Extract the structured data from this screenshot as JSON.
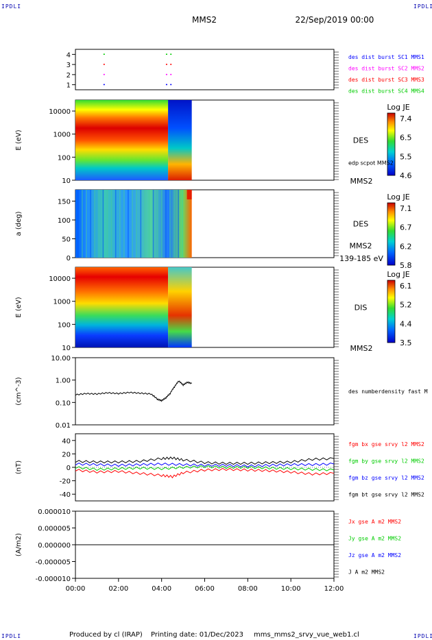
{
  "header": {
    "corner_left": "IPDLI",
    "corner_right": "IPDLI",
    "mission": "MMS2",
    "date": "22/Sep/2019 00:00"
  },
  "footer": {
    "produced_by": "Produced by cl (IRAP)",
    "printing_date": "Printing date: 01/Dec/2023",
    "product": "mms_mms2_srvy_vue_web1.cl",
    "corner_left": "IPDLI",
    "corner_right": "IPDLI"
  },
  "chart_data": {
    "type": "multi-panel time series",
    "time_axis": {
      "ticks": [
        "00:00",
        "02:00",
        "04:00",
        "06:00",
        "08:00",
        "10:00",
        "12:00"
      ],
      "range_hours": [
        0,
        12
      ]
    },
    "panels": [
      {
        "id": "burst",
        "type": "scatter",
        "ylim": [
          0.5,
          4.5
        ],
        "y_ticks": [
          "1",
          "2",
          "3",
          "4"
        ],
        "legend": [
          {
            "label": "des dist burst SC1 MMS1",
            "color": "#0000ff"
          },
          {
            "label": "des dist burst SC2 MMS2",
            "color": "#ff00ff"
          },
          {
            "label": "des dist burst SC3 MMS3",
            "color": "#ff0000"
          },
          {
            "label": "des dist burst SC4 MMS4",
            "color": "#00cc00"
          }
        ],
        "marks": [
          {
            "sc": 1,
            "t": [
              1.3,
              4.2,
              4.4
            ]
          },
          {
            "sc": 2,
            "t": [
              1.3,
              4.2,
              4.4
            ]
          },
          {
            "sc": 3,
            "t": [
              1.3,
              4.2,
              4.4
            ]
          },
          {
            "sc": 4,
            "t": [
              1.3,
              4.2,
              4.4
            ]
          }
        ]
      },
      {
        "id": "des-energy",
        "type": "heatmap",
        "ylabel": "E (eV)",
        "scale": "log",
        "ylim": [
          10,
          30000
        ],
        "y_ticks": [
          "10",
          "100",
          "1000",
          "10000"
        ],
        "right_label": "DES",
        "right_sub": "edp scpot MMS2",
        "bottom_right": "MMS2",
        "colorbar": {
          "title": "Log JE",
          "ticks": [
            "7.4",
            "6.5",
            "5.5",
            "4.6"
          ],
          "range": [
            4.6,
            7.4
          ]
        },
        "data_end_hours": 5.4
      },
      {
        "id": "des-pitch",
        "type": "heatmap",
        "ylabel": "a (deg)",
        "ylim": [
          0,
          180
        ],
        "y_ticks": [
          "0",
          "50",
          "100",
          "150"
        ],
        "right_label": "DES",
        "right_sub": "MMS2",
        "bottom_right": "139-185 eV",
        "colorbar": {
          "title": "Log JE",
          "ticks": [
            "7.1",
            "6.7",
            "6.2",
            "5.8"
          ],
          "range": [
            5.8,
            7.1
          ]
        },
        "data_end_hours": 5.4
      },
      {
        "id": "dis-energy",
        "type": "heatmap",
        "ylabel": "E (eV)",
        "scale": "log",
        "ylim": [
          10,
          30000
        ],
        "y_ticks": [
          "10",
          "100",
          "1000",
          "10000"
        ],
        "right_label": "DIS",
        "bottom_right": "MMS2",
        "colorbar": {
          "title": "Log JE",
          "ticks": [
            "6.1",
            "5.2",
            "4.4",
            "3.5"
          ],
          "range": [
            3.5,
            6.1
          ]
        },
        "data_end_hours": 5.4
      },
      {
        "id": "density",
        "type": "line",
        "ylabel": "(cm^-3)",
        "scale": "log",
        "ylim": [
          0.01,
          10
        ],
        "y_ticks": [
          "0.01",
          "0.10",
          "1.00",
          "10.00"
        ],
        "series": [
          {
            "name": "des numberdensity fast M",
            "color": "#000000",
            "t": [
              0,
              0.5,
              1.0,
              1.5,
              2.0,
              2.5,
              3.0,
              3.5,
              3.8,
              4.0,
              4.2,
              4.4,
              4.6,
              4.8,
              5.0,
              5.2,
              5.4
            ],
            "values": [
              0.22,
              0.25,
              0.24,
              0.27,
              0.25,
              0.28,
              0.26,
              0.24,
              0.14,
              0.12,
              0.16,
              0.25,
              0.5,
              0.9,
              0.6,
              0.8,
              0.7
            ]
          }
        ]
      },
      {
        "id": "fgm",
        "type": "line",
        "ylabel": "(nT)",
        "ylim": [
          -50,
          50
        ],
        "y_ticks": [
          "-40",
          "-20",
          "0",
          "20",
          "40"
        ],
        "series": [
          {
            "name": "fgm bx gse srvy l2 MMS2",
            "color": "#ff0000",
            "t": [
              0,
              1,
              2,
              3,
              4,
              4.5,
              5,
              6,
              7,
              8,
              9,
              10,
              11,
              12
            ],
            "values": [
              -4,
              -7,
              -6,
              -9,
              -12,
              -14,
              -8,
              -4,
              -3,
              -4,
              -5,
              -7,
              -10,
              -9
            ]
          },
          {
            "name": "fgm by gse srvy l2 MMS2",
            "color": "#00cc00",
            "t": [
              0,
              1,
              2,
              3,
              4,
              5,
              6,
              7,
              8,
              9,
              10,
              11,
              12
            ],
            "values": [
              0,
              -3,
              -2,
              -1,
              -2,
              0,
              1,
              0,
              0,
              -1,
              -2,
              -3,
              -4
            ]
          },
          {
            "name": "fgm bz gse srvy l2 MMS2",
            "color": "#0000ff",
            "t": [
              0,
              1,
              2,
              3,
              4,
              5,
              6,
              7,
              8,
              9,
              10,
              11,
              12
            ],
            "values": [
              5,
              4,
              3,
              4,
              5,
              4,
              3,
              3,
              2,
              3,
              4,
              4,
              5
            ]
          },
          {
            "name": "fgm bt gse srvy l2 MMS2",
            "color": "#000000",
            "t": [
              0,
              1,
              2,
              3,
              4,
              4.5,
              5,
              6,
              7,
              8,
              9,
              10,
              11,
              12
            ],
            "values": [
              9,
              8,
              8,
              9,
              13,
              14,
              11,
              7,
              6,
              6,
              7,
              8,
              12,
              13
            ]
          }
        ]
      },
      {
        "id": "current",
        "type": "line",
        "ylabel": "(A/m2)",
        "ylim": [
          -1e-05,
          1e-05
        ],
        "y_ticks": [
          "0.000010",
          "0.000005",
          "0.000000",
          "-0.000005",
          "-0.000010"
        ],
        "series": [
          {
            "name": "Jx gse A m2 MMS2",
            "color": "#ff0000",
            "t": [
              0,
              12
            ],
            "values": [
              0,
              0
            ]
          },
          {
            "name": "Jy gse A m2 MMS2",
            "color": "#00cc00",
            "t": [
              0,
              12
            ],
            "values": [
              0,
              0
            ]
          },
          {
            "name": "Jz gse A m2 MMS2",
            "color": "#0000ff",
            "t": [
              0,
              12
            ],
            "values": [
              0,
              0
            ]
          },
          {
            "name": "J A m2 MMS2",
            "color": "#000000",
            "t": [
              0,
              12
            ],
            "values": [
              0,
              0
            ]
          }
        ]
      }
    ]
  }
}
